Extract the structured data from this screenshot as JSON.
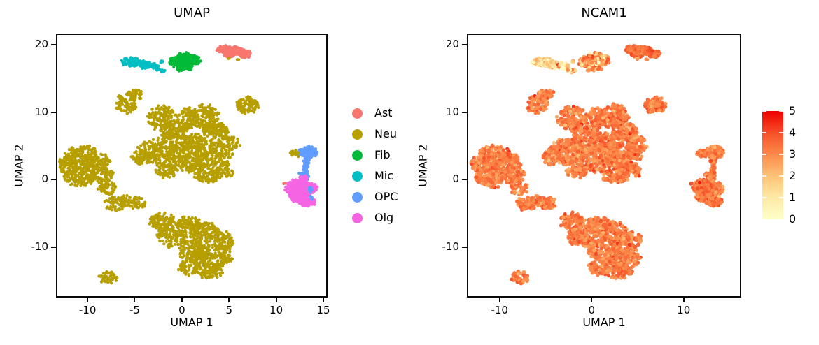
{
  "figure": {
    "background": "#ffffff"
  },
  "chart_data": [
    {
      "type": "scatter",
      "title": "UMAP",
      "xlabel": "UMAP 1",
      "ylabel": "UMAP 2",
      "xlim": [
        -13.2,
        15.3
      ],
      "ylim": [
        -17.3,
        21.5
      ],
      "xticks": [
        -10,
        -5,
        0,
        5,
        10,
        15
      ],
      "yticks": [
        -10,
        0,
        10,
        20
      ],
      "grid": false,
      "legend_position": "right",
      "point_radius_px": 2.1,
      "legend_order": [
        "Ast",
        "Neu",
        "Fib",
        "Mic",
        "OPC",
        "Olg"
      ],
      "series": [
        {
          "name": "Neu",
          "color": "#B79F00",
          "blobs": [
            [
              -5.9,
              11.3,
              1.1,
              1.4,
              90
            ],
            [
              -5.0,
              12.6,
              0.85,
              0.8,
              50
            ],
            [
              6.9,
              11.0,
              1.15,
              1.2,
              95
            ],
            [
              -2.1,
              9.2,
              1.5,
              1.7,
              150
            ],
            [
              -0.9,
              7.0,
              1.3,
              1.3,
              110
            ],
            [
              0.6,
              9.0,
              1.0,
              1.6,
              90
            ],
            [
              2.4,
              9.4,
              1.5,
              1.7,
              150
            ],
            [
              3.6,
              7.2,
              1.4,
              1.4,
              120
            ],
            [
              -2.6,
              4.2,
              1.9,
              1.9,
              200
            ],
            [
              -4.3,
              3.4,
              1.0,
              1.1,
              70
            ],
            [
              0.4,
              3.4,
              2.1,
              2.2,
              260
            ],
            [
              3.3,
              3.6,
              1.9,
              2.0,
              220
            ],
            [
              5.0,
              5.3,
              1.1,
              1.1,
              70
            ],
            [
              1.2,
              5.6,
              1.3,
              1.3,
              100
            ],
            [
              -1.6,
              1.2,
              1.1,
              1.0,
              70
            ],
            [
              2.6,
              0.6,
              1.4,
              1.0,
              90
            ],
            [
              4.5,
              1.2,
              0.9,
              0.9,
              50
            ],
            [
              -10.6,
              3.6,
              1.7,
              1.4,
              160
            ],
            [
              -12.1,
              2.2,
              1.0,
              1.3,
              80
            ],
            [
              -9.1,
              2.6,
              1.4,
              1.3,
              110
            ],
            [
              -10.9,
              0.5,
              1.6,
              1.5,
              150
            ],
            [
              -8.6,
              0.6,
              1.3,
              1.2,
              100
            ],
            [
              -7.9,
              -1.3,
              0.9,
              0.9,
              50
            ],
            [
              -7.1,
              -3.6,
              1.05,
              1.0,
              70
            ],
            [
              -4.9,
              -3.4,
              1.0,
              0.85,
              60
            ],
            [
              -6.0,
              -2.9,
              0.6,
              0.5,
              25
            ],
            [
              -2.1,
              -6.2,
              1.3,
              1.2,
              100
            ],
            [
              -1.0,
              -8.4,
              1.5,
              1.6,
              140
            ],
            [
              0.7,
              -6.7,
              1.3,
              1.2,
              100
            ],
            [
              2.4,
              -7.9,
              1.6,
              1.5,
              140
            ],
            [
              1.4,
              -10.4,
              1.7,
              1.6,
              160
            ],
            [
              3.4,
              -11.4,
              1.9,
              1.8,
              200
            ],
            [
              0.9,
              -13.0,
              1.2,
              1.2,
              80
            ],
            [
              3.1,
              -13.7,
              1.4,
              1.0,
              80
            ],
            [
              4.4,
              -9.0,
              1.1,
              1.2,
              70
            ],
            [
              -7.8,
              -14.5,
              0.95,
              0.85,
              55
            ],
            [
              12.1,
              3.9,
              0.6,
              0.5,
              30
            ],
            [
              4.9,
              18.0,
              0.13,
              0.1,
              2,
              1
            ],
            [
              5.9,
              17.85,
              0.16,
              0.1,
              3,
              1
            ]
          ]
        },
        {
          "name": "Fib",
          "color": "#00BA38",
          "blobs": [
            [
              -0.75,
              17.5,
              0.6,
              0.75,
              60
            ],
            [
              0.3,
              17.3,
              0.85,
              0.95,
              110
            ],
            [
              1.3,
              17.75,
              0.65,
              0.7,
              60
            ],
            [
              0.3,
              18.35,
              0.75,
              0.5,
              50
            ],
            [
              -0.2,
              16.35,
              0.3,
              0.25,
              10
            ],
            [
              0.9,
              16.6,
              0.3,
              0.3,
              10
            ]
          ]
        },
        {
          "name": "Mic",
          "color": "#00BFC4",
          "blobs": [
            [
              -5.4,
              17.5,
              1.05,
              0.62,
              80
            ],
            [
              -4.2,
              17.1,
              0.95,
              0.55,
              70
            ],
            [
              -3.1,
              16.9,
              0.6,
              0.42,
              35
            ],
            [
              -2.15,
              17.55,
              0.2,
              0.18,
              6
            ],
            [
              -2.0,
              16.15,
              0.3,
              0.25,
              8
            ],
            [
              -2.55,
              16.35,
              0.22,
              0.2,
              5
            ]
          ]
        },
        {
          "name": "Ast",
          "color": "#F8766D",
          "blobs": [
            [
              4.5,
              19.35,
              0.8,
              0.55,
              80
            ],
            [
              5.6,
              19.15,
              0.95,
              0.6,
              110
            ],
            [
              6.7,
              18.65,
              0.7,
              0.5,
              60
            ],
            [
              5.0,
              18.55,
              0.6,
              0.4,
              40
            ],
            [
              10.9,
              -0.6,
              0.12,
              0.1,
              2,
              1
            ]
          ]
        },
        {
          "name": "OPC",
          "color": "#619CFF",
          "blobs": [
            [
              13.4,
              4.1,
              0.9,
              0.85,
              120
            ],
            [
              13.2,
              2.8,
              0.35,
              0.6,
              25
            ],
            [
              13.15,
              1.6,
              0.25,
              0.8,
              25
            ],
            [
              13.2,
              0.5,
              0.3,
              0.55,
              20
            ],
            [
              12.65,
              0.7,
              0.35,
              0.4,
              12
            ],
            [
              13.6,
              -1.5,
              0.18,
              0.5,
              10,
              1
            ],
            [
              13.75,
              -2.7,
              0.15,
              0.35,
              6,
              1
            ]
          ]
        },
        {
          "name": "Olg",
          "color": "#F564E3",
          "blobs": [
            [
              12.2,
              -0.7,
              0.95,
              0.75,
              150
            ],
            [
              13.3,
              -1.3,
              1.0,
              0.85,
              170
            ],
            [
              12.4,
              -2.3,
              1.05,
              0.95,
              180
            ],
            [
              13.3,
              -3.3,
              0.85,
              0.6,
              90
            ],
            [
              11.5,
              -1.4,
              0.55,
              0.55,
              45
            ],
            [
              12.9,
              0.2,
              0.45,
              0.35,
              30
            ]
          ]
        }
      ]
    },
    {
      "type": "scatter",
      "title": "NCAM1",
      "xlabel": "UMAP 1",
      "ylabel": "UMAP 2",
      "xlim": [
        -13.4,
        16.1
      ],
      "ylim": [
        -17.3,
        21.5
      ],
      "xticks": [
        -10,
        0,
        10
      ],
      "yticks": [
        -10,
        0,
        10,
        20
      ],
      "grid": false,
      "point_radius_px": 2.6,
      "geometry_from": "UMAP",
      "expression_by_cluster": {
        "Neu": {
          "mean": 3.2,
          "sd": 0.45
        },
        "Fib": {
          "mean": 2.5,
          "sd": 1.0
        },
        "Mic": {
          "mean": 1.5,
          "sd": 1.1
        },
        "Ast": {
          "mean": 3.5,
          "sd": 0.4
        },
        "OPC": {
          "mean": 3.1,
          "sd": 0.45
        },
        "Olg": {
          "mean": 3.3,
          "sd": 0.45
        }
      },
      "colorbar": {
        "vmin": 0,
        "vmax": 5,
        "ticks": [
          5,
          4,
          3,
          2,
          1,
          0
        ],
        "stops": [
          "#ffffc8",
          "#fee9a6",
          "#fdc377",
          "#fb8a4a",
          "#f64f27",
          "#ee0000"
        ]
      }
    }
  ]
}
